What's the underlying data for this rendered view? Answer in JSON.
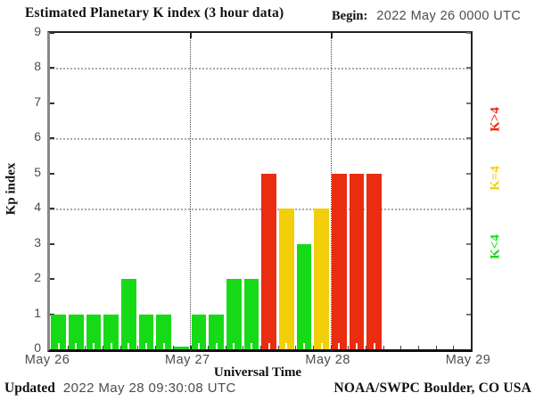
{
  "header": {
    "title": "Estimated Planetary K index (3 hour data)",
    "begin_label": "Begin:",
    "begin_value": "2022 May 26 0000 UTC"
  },
  "footer": {
    "updated_label": "Updated",
    "updated_value": "2022 May 28 09:30:08 UTC",
    "credit": "NOAA/SWPC Boulder, CO USA"
  },
  "colors": {
    "green": "#17da17",
    "yellow": "#f3cf0b",
    "red": "#ea2c10",
    "grid": "#aaaaaa",
    "axis_text": "#4d4d4d"
  },
  "legend": [
    {
      "label": "K>4",
      "color_key": "red"
    },
    {
      "label": "K=4",
      "color_key": "yellow"
    },
    {
      "label": "K<4",
      "color_key": "green"
    }
  ],
  "chart_data": {
    "type": "bar",
    "title": "Estimated Planetary K index (3 hour data)",
    "xlabel": "Universal Time",
    "ylabel": "Kp index",
    "ylim": [
      0,
      9
    ],
    "yticks": [
      0,
      1,
      2,
      3,
      4,
      5,
      6,
      7,
      8,
      9
    ],
    "grid_y": [
      4,
      6,
      8
    ],
    "bin_hours": 3,
    "x_start": "2022 May 26 0000 UTC",
    "x_tick_labels": [
      "May 26",
      "May 27",
      "May 28",
      "May 29"
    ],
    "slots_per_day": 8,
    "total_slots": 24,
    "values": [
      1,
      1,
      1,
      1,
      2,
      1,
      1,
      0,
      1,
      1,
      2,
      2,
      5,
      4,
      3,
      4,
      5,
      5,
      5
    ],
    "color_rule": {
      "below_4": "green",
      "equal_4": "yellow",
      "above_4": "red"
    },
    "legend_position": "right",
    "grid": "dotted horizontal at 4,6,8; dotted vertical at day boundaries"
  }
}
